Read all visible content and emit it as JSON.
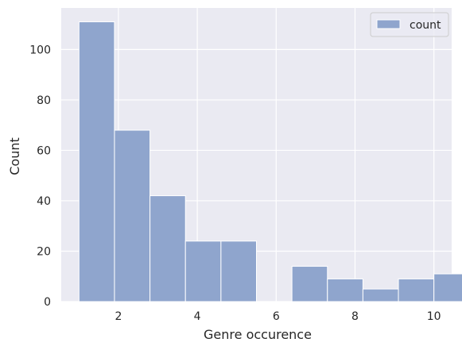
{
  "chart_data": {
    "type": "bar",
    "subtype": "histogram",
    "title": "",
    "xlabel": "Genre occurence",
    "ylabel": "Count",
    "xlim": [
      0.55,
      10.45
    ],
    "ylim": [
      0,
      116.5
    ],
    "xticks": [
      2,
      4,
      6,
      8,
      10
    ],
    "yticks": [
      0,
      20,
      40,
      60,
      80,
      100
    ],
    "grid": true,
    "legend": {
      "placement": "top-right",
      "entries": [
        "count"
      ]
    },
    "series": [
      {
        "name": "count",
        "color": "#8fa5cd",
        "bins": [
          {
            "x0": 1.0,
            "x1": 1.9,
            "value": 111
          },
          {
            "x0": 1.9,
            "x1": 2.8,
            "value": 68
          },
          {
            "x0": 2.8,
            "x1": 3.7,
            "value": 42
          },
          {
            "x0": 3.7,
            "x1": 4.6,
            "value": 24
          },
          {
            "x0": 4.6,
            "x1": 5.5,
            "value": 24
          },
          {
            "x0": 5.5,
            "x1": 6.4,
            "value": 0
          },
          {
            "x0": 6.4,
            "x1": 7.3,
            "value": 14
          },
          {
            "x0": 7.3,
            "x1": 8.2,
            "value": 9
          },
          {
            "x0": 8.2,
            "x1": 9.1,
            "value": 5
          },
          {
            "x0": 9.1,
            "x1": 10.0,
            "value": 9
          },
          {
            "x0": 10.0,
            "x1": 10.9,
            "value": 11
          }
        ]
      }
    ],
    "colors": {
      "plot_background": "#eaeaf2",
      "grid": "#ffffff",
      "bar": "#8fa5cd",
      "bar_edge": "#ffffff"
    }
  }
}
